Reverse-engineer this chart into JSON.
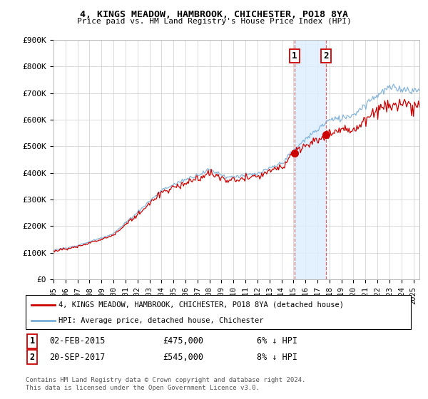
{
  "title": "4, KINGS MEADOW, HAMBROOK, CHICHESTER, PO18 8YA",
  "subtitle": "Price paid vs. HM Land Registry's House Price Index (HPI)",
  "ylabel_ticks": [
    "£0",
    "£100K",
    "£200K",
    "£300K",
    "£400K",
    "£500K",
    "£600K",
    "£700K",
    "£800K",
    "£900K"
  ],
  "ylim": [
    0,
    900000
  ],
  "xlim_start": 1995.0,
  "xlim_end": 2025.5,
  "xtick_years": [
    1995,
    1996,
    1997,
    1998,
    1999,
    2000,
    2001,
    2002,
    2003,
    2004,
    2005,
    2006,
    2007,
    2008,
    2009,
    2010,
    2011,
    2012,
    2013,
    2014,
    2015,
    2016,
    2017,
    2018,
    2019,
    2020,
    2021,
    2022,
    2023,
    2024,
    2025
  ],
  "sale1_date": 2015.08,
  "sale1_price": 475000,
  "sale1_label": "1",
  "sale1_hpi_pct": "6% ↓ HPI",
  "sale1_date_str": "02-FEB-2015",
  "sale2_date": 2017.72,
  "sale2_price": 545000,
  "sale2_label": "2",
  "sale2_hpi_pct": "8% ↓ HPI",
  "sale2_date_str": "20-SEP-2017",
  "property_line_color": "#cc0000",
  "hpi_line_color": "#7aaed6",
  "shade_color": "#ddeeff",
  "grid_color": "#cccccc",
  "legend_label_property": "4, KINGS MEADOW, HAMBROOK, CHICHESTER, PO18 8YA (detached house)",
  "legend_label_hpi": "HPI: Average price, detached house, Chichester",
  "footnote": "Contains HM Land Registry data © Crown copyright and database right 2024.\nThis data is licensed under the Open Government Licence v3.0."
}
